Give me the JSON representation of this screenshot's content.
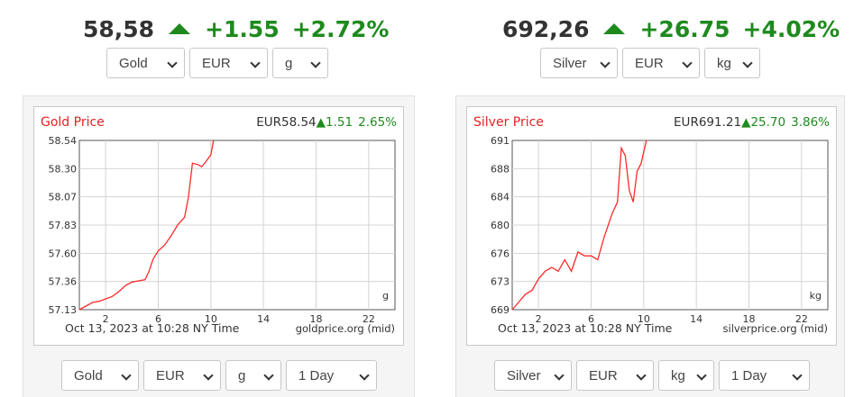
{
  "gold_widget": {
    "price": "58,58",
    "change": "+1.55",
    "change_pct": "+2.72%",
    "selectors": {
      "metal": "Gold",
      "currency": "EUR",
      "unit": "g"
    },
    "chart": {
      "title": "Gold Price",
      "quote": "EUR58.54",
      "quote_change": "1.51",
      "quote_pct": "2.65%",
      "unit_label": "g",
      "timestamp": "Oct 13, 2023 at 10:28 NY Time",
      "source": "goldprice.org (mid)"
    },
    "bottom_selectors": {
      "metal": "Gold",
      "currency": "EUR",
      "unit": "g",
      "range": "1 Day"
    }
  },
  "silver_widget": {
    "price": "692,26",
    "change": "+26.75",
    "change_pct": "+4.02%",
    "selectors": {
      "metal": "Silver",
      "currency": "EUR",
      "unit": "kg"
    },
    "chart": {
      "title": "Silver Price",
      "quote": "EUR691.21",
      "quote_change": "25.70",
      "quote_pct": "3.86%",
      "unit_label": "kg",
      "timestamp": "Oct 13, 2023 at 10:28 NY Time",
      "source": "silverprice.org (mid)"
    },
    "bottom_selectors": {
      "metal": "Silver",
      "currency": "EUR",
      "unit": "kg",
      "range": "1 Day"
    }
  },
  "colors": {
    "up": "#1e8a1e",
    "line": "#ff2a2a",
    "title": "#e32222"
  },
  "chart_data": [
    {
      "type": "line",
      "title": "Gold Price",
      "x_ticks": [
        2,
        6,
        10,
        14,
        18,
        22
      ],
      "y_ticks": [
        "58.54",
        "58.30",
        "58.07",
        "57.83",
        "57.60",
        "57.36",
        "57.13"
      ],
      "xlim": [
        0,
        24
      ],
      "ylim": [
        57.13,
        58.54
      ],
      "grid": true,
      "series": [
        {
          "x": [
            0,
            0.5,
            1,
            1.5,
            2,
            2.5,
            3,
            3.5,
            4,
            4.5,
            5,
            5.3,
            5.6,
            6,
            6.5,
            7,
            7.5,
            8,
            8.3,
            8.6,
            9,
            9.3,
            9.6,
            10,
            10.2
          ],
          "y": [
            57.13,
            57.16,
            57.19,
            57.2,
            57.22,
            57.24,
            57.28,
            57.33,
            57.36,
            57.37,
            57.38,
            57.45,
            57.55,
            57.62,
            57.67,
            57.75,
            57.84,
            57.9,
            58.07,
            58.35,
            58.34,
            58.32,
            58.36,
            58.42,
            58.54
          ]
        }
      ]
    },
    {
      "type": "line",
      "title": "Silver Price",
      "x_ticks": [
        2,
        6,
        10,
        14,
        18,
        22
      ],
      "y_ticks": [
        "691",
        "688",
        "684",
        "680",
        "676",
        "673",
        "669"
      ],
      "xlim": [
        0,
        24
      ],
      "ylim": [
        669,
        691
      ],
      "grid": true,
      "series": [
        {
          "x": [
            0,
            0.5,
            1,
            1.5,
            2,
            2.5,
            3,
            3.5,
            4,
            4.5,
            5,
            5.5,
            6,
            6.5,
            7,
            7.3,
            7.6,
            8,
            8.3,
            8.6,
            8.9,
            9.2,
            9.5,
            9.8,
            10,
            10.2
          ],
          "y": [
            669,
            670,
            671,
            671.5,
            673,
            674,
            674.5,
            674,
            675.5,
            674,
            676.5,
            676,
            676,
            675.5,
            678.5,
            680,
            681.5,
            683,
            690,
            689,
            684.5,
            683,
            687,
            688,
            689.5,
            691
          ]
        }
      ]
    }
  ]
}
